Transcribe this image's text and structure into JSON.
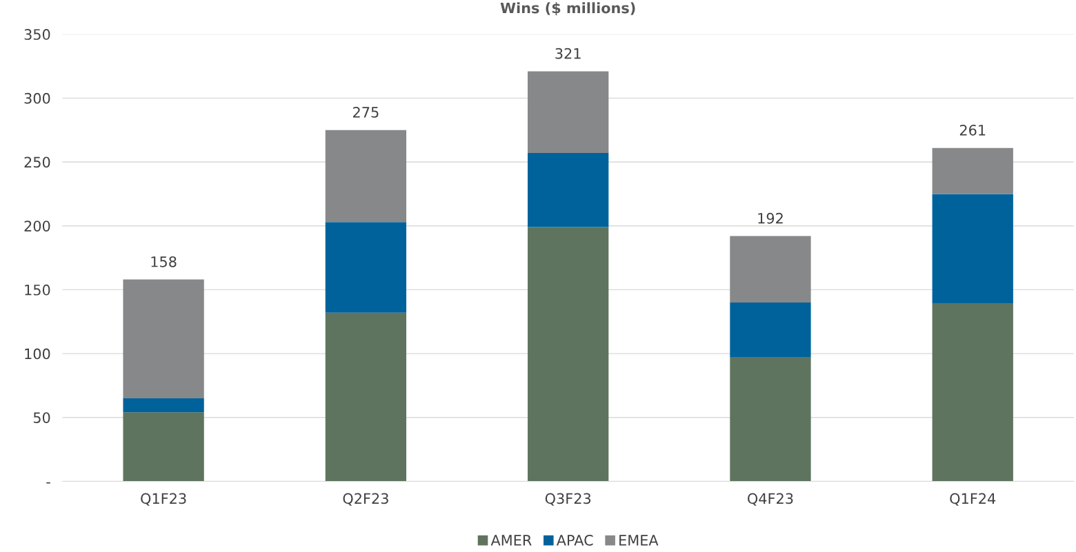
{
  "chart_data": {
    "type": "bar",
    "title": "Wins ($ millions)",
    "stacked": true,
    "categories": [
      "Q1F23",
      "Q2F23",
      "Q3F23",
      "Q4F23",
      "Q1F24"
    ],
    "series": [
      {
        "name": "AMER",
        "color": "#5e745e",
        "values": [
          54,
          132,
          199,
          97,
          139
        ]
      },
      {
        "name": "APAC",
        "color": "#00629b",
        "values": [
          11,
          71,
          58,
          43,
          86
        ]
      },
      {
        "name": "EMEA",
        "color": "#87888a",
        "values": [
          93,
          72,
          64,
          52,
          36
        ]
      }
    ],
    "totals": [
      "158",
      "275",
      "321",
      "192",
      "261"
    ],
    "ylim": [
      0,
      350
    ],
    "yticks": [
      {
        "value": 0,
        "label": "-"
      },
      50,
      100,
      150,
      200,
      250,
      300,
      350
    ],
    "grid": "y",
    "legend": "bottom"
  }
}
